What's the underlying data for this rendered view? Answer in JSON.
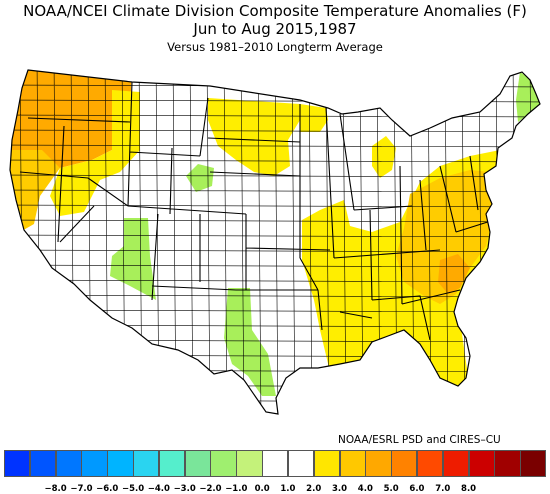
{
  "header": {
    "title_line1": "NOAA/NCEI Climate Division Composite Temperature Anomalies (F)",
    "title_line2": "Jun to Aug  2015,1987",
    "subtitle": "Versus 1981–2010 Longterm Average"
  },
  "credit": "NOAA/ESRL PSD and CIRES–CU",
  "legend": {
    "colors": [
      "#0033ff",
      "#0055ff",
      "#0077ff",
      "#0099ff",
      "#00b4ff",
      "#2ad4f0",
      "#55eecc",
      "#7ae59a",
      "#9fef6f",
      "#c4f27a",
      "#ffffff",
      "#ffffff",
      "#ffe600",
      "#ffc800",
      "#ffa800",
      "#ff8200",
      "#ff4a00",
      "#ee1c00",
      "#cc0000",
      "#a00000",
      "#7a0000"
    ],
    "ticks": [
      "−8.0",
      "−7.0",
      "−6.0",
      "−5.0",
      "−4.0",
      "−3.0",
      "−2.0",
      "−1.0",
      "0.0",
      "1.0",
      "2.0",
      "3.0",
      "4.0",
      "5.0",
      "6.0",
      "7.0",
      "8.0"
    ]
  },
  "map": {
    "fill_colors": {
      "white": "#ffffff",
      "yellow": "#ffee00",
      "light_orange": "#ffcc00",
      "orange": "#ffaa00",
      "green": "#a8ef5a"
    }
  }
}
